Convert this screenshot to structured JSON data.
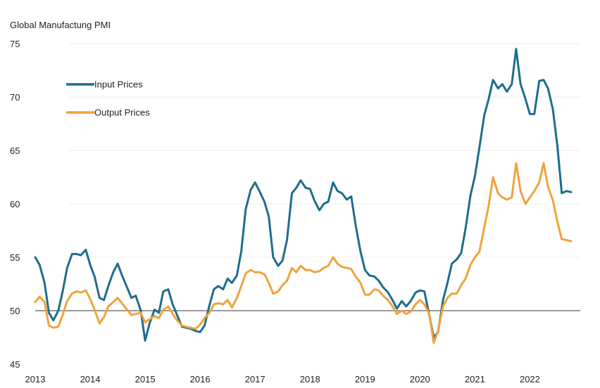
{
  "chart_data": {
    "type": "line",
    "title": "",
    "ylabel": "Global Manufactung PMI",
    "xlabel": "",
    "ylim": [
      45,
      75
    ],
    "yticks": [
      45,
      50,
      55,
      60,
      65,
      70,
      75
    ],
    "xlim": [
      2013.0,
      2022.917
    ],
    "xticks": [
      2013,
      2014,
      2015,
      2016,
      2017,
      2018,
      2019,
      2020,
      2021,
      2022
    ],
    "x_tick_labels": [
      "2013",
      "2014",
      "2015",
      "2016",
      "2017",
      "2018",
      "2019",
      "2020",
      "2021",
      "2022"
    ],
    "reference_line": 50,
    "legend_position": "top-left",
    "colors": {
      "input": "#1f6d8c",
      "output": "#f0a33c",
      "grid": "#eeeeee",
      "refline": "#333333"
    },
    "series": [
      {
        "name": "Input Prices",
        "key": "input",
        "points": [
          [
            2013.0,
            55.0
          ],
          [
            2013.08,
            54.3
          ],
          [
            2013.17,
            52.6
          ],
          [
            2013.25,
            49.8
          ],
          [
            2013.33,
            49.1
          ],
          [
            2013.42,
            50.0
          ],
          [
            2013.5,
            51.8
          ],
          [
            2013.58,
            54.0
          ],
          [
            2013.67,
            55.3
          ],
          [
            2013.75,
            55.3
          ],
          [
            2013.83,
            55.2
          ],
          [
            2013.92,
            55.7
          ],
          [
            2014.0,
            54.3
          ],
          [
            2014.08,
            53.2
          ],
          [
            2014.17,
            51.2
          ],
          [
            2014.25,
            51.0
          ],
          [
            2014.33,
            52.3
          ],
          [
            2014.42,
            53.6
          ],
          [
            2014.5,
            54.4
          ],
          [
            2014.58,
            53.3
          ],
          [
            2014.67,
            52.2
          ],
          [
            2014.75,
            51.2
          ],
          [
            2014.83,
            51.4
          ],
          [
            2014.92,
            50.0
          ],
          [
            2015.0,
            47.2
          ],
          [
            2015.08,
            48.8
          ],
          [
            2015.17,
            50.1
          ],
          [
            2015.25,
            49.8
          ],
          [
            2015.33,
            51.8
          ],
          [
            2015.42,
            52.0
          ],
          [
            2015.5,
            50.6
          ],
          [
            2015.58,
            49.6
          ],
          [
            2015.67,
            48.5
          ],
          [
            2015.75,
            48.4
          ],
          [
            2015.83,
            48.3
          ],
          [
            2015.92,
            48.1
          ],
          [
            2016.0,
            48.0
          ],
          [
            2016.08,
            48.6
          ],
          [
            2016.17,
            50.5
          ],
          [
            2016.25,
            52.0
          ],
          [
            2016.33,
            52.3
          ],
          [
            2016.42,
            52.0
          ],
          [
            2016.5,
            53.0
          ],
          [
            2016.58,
            52.6
          ],
          [
            2016.67,
            53.3
          ],
          [
            2016.75,
            55.6
          ],
          [
            2016.83,
            59.5
          ],
          [
            2016.92,
            61.3
          ],
          [
            2017.0,
            62.0
          ],
          [
            2017.08,
            61.2
          ],
          [
            2017.17,
            60.2
          ],
          [
            2017.25,
            58.8
          ],
          [
            2017.33,
            55.0
          ],
          [
            2017.42,
            54.2
          ],
          [
            2017.5,
            54.7
          ],
          [
            2017.58,
            56.6
          ],
          [
            2017.67,
            61.0
          ],
          [
            2017.75,
            61.5
          ],
          [
            2017.83,
            62.2
          ],
          [
            2017.92,
            61.5
          ],
          [
            2018.0,
            61.4
          ],
          [
            2018.08,
            60.3
          ],
          [
            2018.17,
            59.4
          ],
          [
            2018.25,
            60.0
          ],
          [
            2018.33,
            60.2
          ],
          [
            2018.42,
            62.0
          ],
          [
            2018.5,
            61.2
          ],
          [
            2018.58,
            61.0
          ],
          [
            2018.67,
            60.4
          ],
          [
            2018.75,
            60.7
          ],
          [
            2018.83,
            58.0
          ],
          [
            2018.92,
            55.5
          ],
          [
            2019.0,
            53.8
          ],
          [
            2019.08,
            53.3
          ],
          [
            2019.17,
            53.2
          ],
          [
            2019.25,
            52.8
          ],
          [
            2019.33,
            52.2
          ],
          [
            2019.42,
            51.7
          ],
          [
            2019.5,
            51.0
          ],
          [
            2019.58,
            50.2
          ],
          [
            2019.67,
            50.9
          ],
          [
            2019.75,
            50.4
          ],
          [
            2019.83,
            50.9
          ],
          [
            2019.92,
            51.7
          ],
          [
            2020.0,
            51.9
          ],
          [
            2020.08,
            51.8
          ],
          [
            2020.17,
            49.6
          ],
          [
            2020.25,
            47.5
          ],
          [
            2020.33,
            48.0
          ],
          [
            2020.42,
            51.0
          ],
          [
            2020.5,
            52.6
          ],
          [
            2020.58,
            54.4
          ],
          [
            2020.67,
            54.8
          ],
          [
            2020.75,
            55.4
          ],
          [
            2020.83,
            57.7
          ],
          [
            2020.92,
            60.8
          ],
          [
            2021.0,
            62.6
          ],
          [
            2021.08,
            65.2
          ],
          [
            2021.17,
            68.3
          ],
          [
            2021.25,
            69.8
          ],
          [
            2021.33,
            71.6
          ],
          [
            2021.42,
            70.8
          ],
          [
            2021.5,
            71.2
          ],
          [
            2021.58,
            70.5
          ],
          [
            2021.67,
            71.2
          ],
          [
            2021.75,
            74.5
          ],
          [
            2021.83,
            71.2
          ],
          [
            2021.92,
            69.8
          ],
          [
            2022.0,
            68.4
          ],
          [
            2022.08,
            68.4
          ],
          [
            2022.17,
            71.5
          ],
          [
            2022.25,
            71.6
          ],
          [
            2022.33,
            70.8
          ],
          [
            2022.42,
            68.8
          ],
          [
            2022.5,
            65.4
          ],
          [
            2022.58,
            61.0
          ],
          [
            2022.67,
            61.2
          ],
          [
            2022.75,
            61.1
          ]
        ]
      },
      {
        "name": "Output Prices",
        "key": "output",
        "points": [
          [
            2013.0,
            50.8
          ],
          [
            2013.08,
            51.3
          ],
          [
            2013.17,
            50.8
          ],
          [
            2013.25,
            48.6
          ],
          [
            2013.33,
            48.4
          ],
          [
            2013.42,
            48.5
          ],
          [
            2013.5,
            49.6
          ],
          [
            2013.58,
            50.9
          ],
          [
            2013.67,
            51.6
          ],
          [
            2013.75,
            51.8
          ],
          [
            2013.83,
            51.7
          ],
          [
            2013.92,
            51.9
          ],
          [
            2014.0,
            51.1
          ],
          [
            2014.08,
            50.1
          ],
          [
            2014.17,
            48.8
          ],
          [
            2014.25,
            49.4
          ],
          [
            2014.33,
            50.4
          ],
          [
            2014.42,
            50.8
          ],
          [
            2014.5,
            51.2
          ],
          [
            2014.58,
            50.7
          ],
          [
            2014.67,
            50.1
          ],
          [
            2014.75,
            49.6
          ],
          [
            2014.83,
            49.7
          ],
          [
            2014.92,
            49.8
          ],
          [
            2015.0,
            48.9
          ],
          [
            2015.08,
            49.2
          ],
          [
            2015.17,
            49.5
          ],
          [
            2015.25,
            49.3
          ],
          [
            2015.33,
            50.1
          ],
          [
            2015.42,
            50.4
          ],
          [
            2015.5,
            49.7
          ],
          [
            2015.58,
            49.1
          ],
          [
            2015.67,
            48.6
          ],
          [
            2015.75,
            48.5
          ],
          [
            2015.83,
            48.4
          ],
          [
            2015.92,
            48.3
          ],
          [
            2016.0,
            48.7
          ],
          [
            2016.08,
            49.3
          ],
          [
            2016.17,
            49.8
          ],
          [
            2016.25,
            50.6
          ],
          [
            2016.33,
            50.7
          ],
          [
            2016.42,
            50.6
          ],
          [
            2016.5,
            51.0
          ],
          [
            2016.58,
            50.3
          ],
          [
            2016.67,
            51.2
          ],
          [
            2016.75,
            52.3
          ],
          [
            2016.83,
            53.5
          ],
          [
            2016.92,
            53.8
          ],
          [
            2017.0,
            53.6
          ],
          [
            2017.08,
            53.6
          ],
          [
            2017.17,
            53.4
          ],
          [
            2017.25,
            52.6
          ],
          [
            2017.33,
            51.6
          ],
          [
            2017.42,
            51.8
          ],
          [
            2017.5,
            52.4
          ],
          [
            2017.58,
            52.8
          ],
          [
            2017.67,
            54.0
          ],
          [
            2017.75,
            53.6
          ],
          [
            2017.83,
            54.2
          ],
          [
            2017.92,
            53.8
          ],
          [
            2018.0,
            53.8
          ],
          [
            2018.08,
            53.6
          ],
          [
            2018.17,
            53.7
          ],
          [
            2018.25,
            54.0
          ],
          [
            2018.33,
            54.2
          ],
          [
            2018.42,
            55.0
          ],
          [
            2018.5,
            54.4
          ],
          [
            2018.58,
            54.1
          ],
          [
            2018.67,
            54.0
          ],
          [
            2018.75,
            53.9
          ],
          [
            2018.83,
            53.2
          ],
          [
            2018.92,
            52.6
          ],
          [
            2019.0,
            51.5
          ],
          [
            2019.08,
            51.5
          ],
          [
            2019.17,
            52.0
          ],
          [
            2019.25,
            51.9
          ],
          [
            2019.33,
            51.4
          ],
          [
            2019.42,
            51.0
          ],
          [
            2019.5,
            50.4
          ],
          [
            2019.58,
            49.7
          ],
          [
            2019.67,
            50.0
          ],
          [
            2019.75,
            49.7
          ],
          [
            2019.83,
            49.9
          ],
          [
            2019.92,
            50.6
          ],
          [
            2020.0,
            51.0
          ],
          [
            2020.08,
            50.6
          ],
          [
            2020.17,
            49.7
          ],
          [
            2020.25,
            47.0
          ],
          [
            2020.33,
            48.1
          ],
          [
            2020.42,
            50.4
          ],
          [
            2020.5,
            51.2
          ],
          [
            2020.58,
            51.6
          ],
          [
            2020.67,
            51.6
          ],
          [
            2020.75,
            52.4
          ],
          [
            2020.83,
            53.0
          ],
          [
            2020.92,
            54.3
          ],
          [
            2021.0,
            55.0
          ],
          [
            2021.08,
            55.5
          ],
          [
            2021.17,
            57.8
          ],
          [
            2021.25,
            59.8
          ],
          [
            2021.33,
            62.5
          ],
          [
            2021.42,
            61.0
          ],
          [
            2021.5,
            60.6
          ],
          [
            2021.58,
            60.4
          ],
          [
            2021.67,
            60.6
          ],
          [
            2021.75,
            63.8
          ],
          [
            2021.83,
            61.2
          ],
          [
            2021.92,
            60.0
          ],
          [
            2022.0,
            60.6
          ],
          [
            2022.08,
            61.2
          ],
          [
            2022.17,
            62.0
          ],
          [
            2022.25,
            63.8
          ],
          [
            2022.33,
            61.6
          ],
          [
            2022.42,
            60.3
          ],
          [
            2022.5,
            58.3
          ],
          [
            2022.58,
            56.7
          ],
          [
            2022.67,
            56.6
          ],
          [
            2022.75,
            56.5
          ]
        ]
      }
    ]
  }
}
